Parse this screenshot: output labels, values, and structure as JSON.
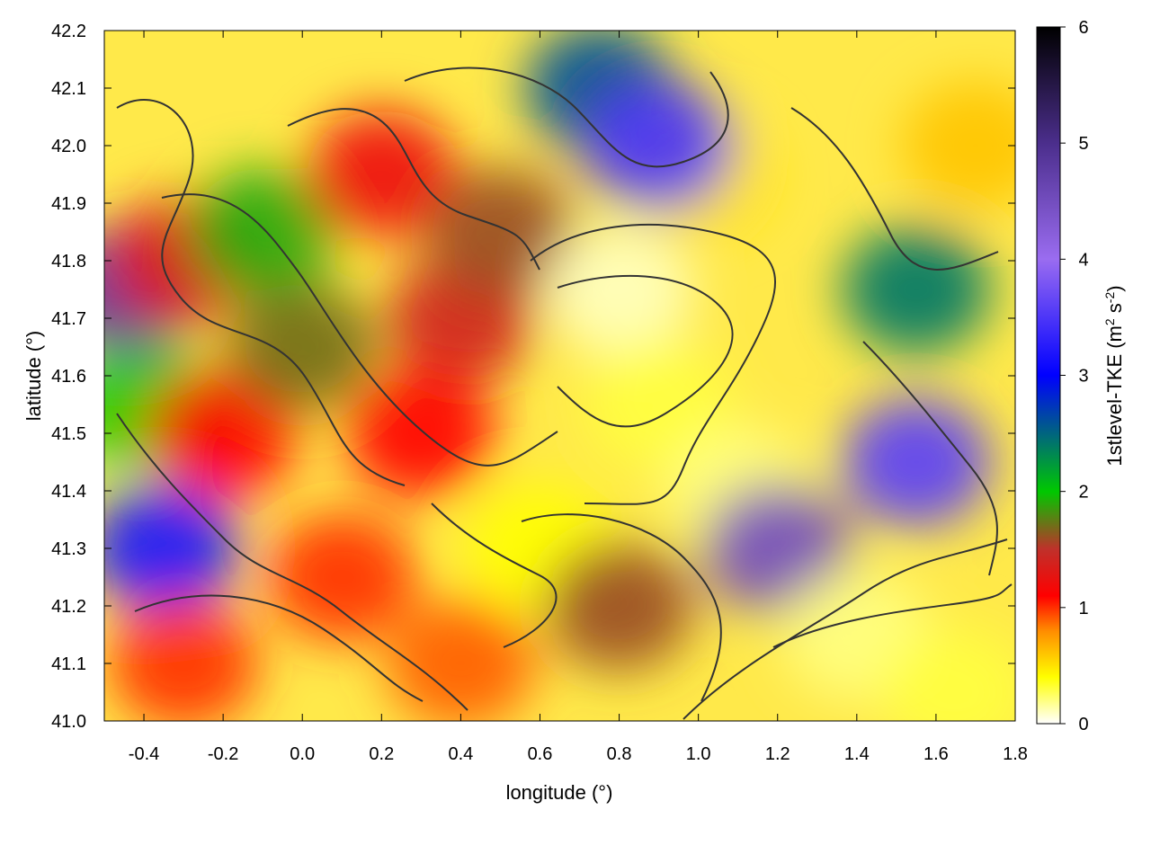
{
  "chart_data": {
    "type": "heatmap",
    "title": "",
    "xlabel": "longitude (°)",
    "ylabel": "latitude (°)",
    "xlim": [
      -0.5,
      1.8
    ],
    "ylim": [
      41.0,
      42.2
    ],
    "x_ticks": [
      "-0.4",
      "-0.2",
      "0.0",
      "0.2",
      "0.4",
      "0.6",
      "0.8",
      "1.0",
      "1.2",
      "1.4",
      "1.6",
      "1.8"
    ],
    "y_ticks": [
      "41.0",
      "41.1",
      "41.2",
      "41.3",
      "41.4",
      "41.5",
      "41.6",
      "41.7",
      "41.8",
      "41.9",
      "42.0",
      "42.1",
      "42.2"
    ],
    "colorbar": {
      "label_main": "1stlevel-TKE (m",
      "label_sup1": "2",
      "label_mid": " s",
      "label_sup2": "-2",
      "label_end": ")",
      "range": [
        0,
        6
      ],
      "ticks": [
        "0",
        "1",
        "2",
        "3",
        "4",
        "5",
        "6"
      ],
      "stops": [
        {
          "value": 0.0,
          "color": "#ffffff"
        },
        {
          "value": 0.4,
          "color": "#ffff00"
        },
        {
          "value": 0.8,
          "color": "#ff8c00"
        },
        {
          "value": 1.1,
          "color": "#ff0000"
        },
        {
          "value": 1.5,
          "color": "#c0302a"
        },
        {
          "value": 2.0,
          "color": "#00c800"
        },
        {
          "value": 3.0,
          "color": "#0000ff"
        },
        {
          "value": 4.0,
          "color": "#9a6cf0"
        },
        {
          "value": 5.0,
          "color": "#4b2e8c"
        },
        {
          "value": 6.0,
          "color": "#000000"
        }
      ]
    },
    "regions": [
      {
        "x": -0.4,
        "y": 41.55,
        "v": 2.0
      },
      {
        "x": -0.35,
        "y": 41.3,
        "v": 3.2
      },
      {
        "x": -0.45,
        "y": 41.75,
        "v": 4.8
      },
      {
        "x": -0.3,
        "y": 41.8,
        "v": 1.3
      },
      {
        "x": -0.1,
        "y": 41.85,
        "v": 1.9
      },
      {
        "x": -0.2,
        "y": 41.5,
        "v": 1.1
      },
      {
        "x": 0.0,
        "y": 41.65,
        "v": 1.7
      },
      {
        "x": 0.1,
        "y": 41.25,
        "v": 1.0
      },
      {
        "x": 0.2,
        "y": 41.95,
        "v": 1.2
      },
      {
        "x": 0.4,
        "y": 41.7,
        "v": 1.4
      },
      {
        "x": 0.5,
        "y": 41.85,
        "v": 1.6
      },
      {
        "x": 0.3,
        "y": 41.5,
        "v": 1.1
      },
      {
        "x": 0.8,
        "y": 41.75,
        "v": 0.1
      },
      {
        "x": 0.9,
        "y": 41.55,
        "v": 0.3
      },
      {
        "x": 0.6,
        "y": 41.3,
        "v": 0.4
      },
      {
        "x": 1.1,
        "y": 41.4,
        "v": 0.2
      },
      {
        "x": 1.0,
        "y": 41.95,
        "v": 0.5
      },
      {
        "x": 0.75,
        "y": 42.1,
        "v": 2.6
      },
      {
        "x": 0.9,
        "y": 42.0,
        "v": 3.5
      },
      {
        "x": 1.55,
        "y": 41.45,
        "v": 3.6
      },
      {
        "x": 1.55,
        "y": 41.75,
        "v": 2.4
      },
      {
        "x": 1.2,
        "y": 41.3,
        "v": 4.5
      },
      {
        "x": 1.4,
        "y": 41.15,
        "v": 0.2
      },
      {
        "x": 1.65,
        "y": 41.05,
        "v": 0.3
      },
      {
        "x": 0.4,
        "y": 41.1,
        "v": 0.9
      },
      {
        "x": 0.8,
        "y": 41.2,
        "v": 1.6
      },
      {
        "x": -0.3,
        "y": 41.1,
        "v": 1.0
      },
      {
        "x": 1.7,
        "y": 42.0,
        "v": 0.6
      }
    ]
  }
}
